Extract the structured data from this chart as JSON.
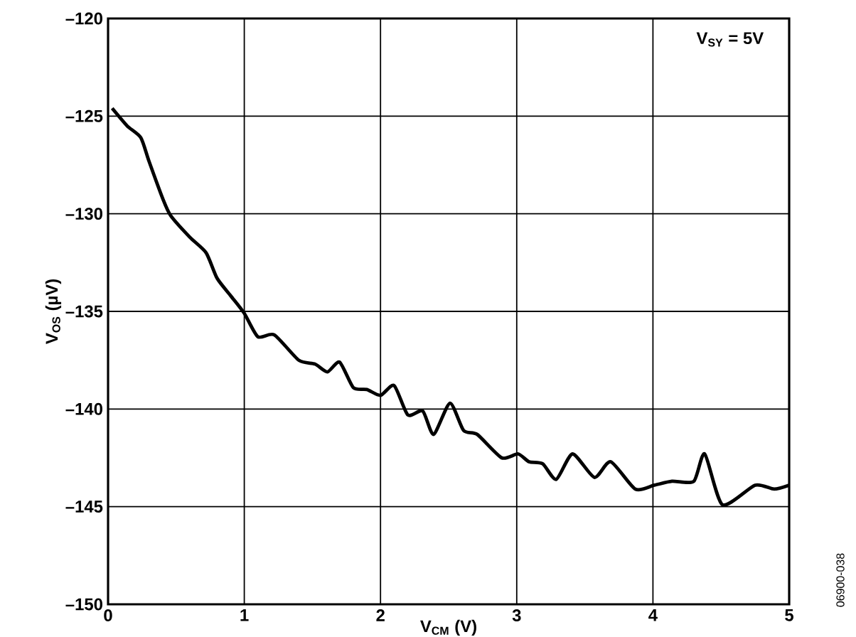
{
  "chart_data": {
    "type": "line",
    "xlabel": "V$_{CM}$ (V)",
    "ylabel": "V$_{OS}$ (µV)",
    "annotations": [
      "V$_{SY}$ = 5V",
      "06900-038"
    ],
    "xlim": [
      0,
      5
    ],
    "ylim": [
      -150,
      -120
    ],
    "xticks": [
      0,
      1,
      2,
      3,
      4,
      5
    ],
    "yticks": [
      {
        "value": -150,
        "label": "–150"
      },
      {
        "value": -145,
        "label": "–145"
      },
      {
        "value": -140,
        "label": "–140"
      },
      {
        "value": -135,
        "label": "–135"
      },
      {
        "value": -130,
        "label": "–130"
      },
      {
        "value": -125,
        "label": "–125"
      },
      {
        "value": -120,
        "label": "–120"
      }
    ],
    "grid": true,
    "marker": "none",
    "line_style": "solid",
    "series": [
      {
        "color": "#000000",
        "x": [
          0.03,
          0.14,
          0.24,
          0.3,
          0.4,
          0.46,
          0.6,
          0.72,
          0.8,
          0.9,
          1.0,
          1.1,
          1.22,
          1.4,
          1.52,
          1.61,
          1.7,
          1.8,
          1.9,
          2.0,
          2.1,
          2.2,
          2.31,
          2.39,
          2.51,
          2.61,
          2.71,
          2.89,
          3.01,
          3.09,
          3.19,
          3.29,
          3.41,
          3.57,
          3.69,
          3.87,
          4.01,
          4.14,
          4.3,
          4.38,
          4.51,
          4.75,
          4.89,
          5.0
        ],
        "values": [
          -124.6,
          -125.5,
          -126.1,
          -127.3,
          -129.2,
          -130.1,
          -131.2,
          -132.0,
          -133.3,
          -134.2,
          -135.1,
          -136.3,
          -136.2,
          -137.5,
          -137.7,
          -138.1,
          -137.6,
          -138.9,
          -139.0,
          -139.3,
          -138.8,
          -140.3,
          -140.1,
          -141.3,
          -139.7,
          -141.1,
          -141.3,
          -142.5,
          -142.3,
          -142.7,
          -142.8,
          -143.6,
          -142.3,
          -143.5,
          -142.7,
          -144.1,
          -143.9,
          -143.7,
          -143.7,
          -142.3,
          -144.9,
          -143.9,
          -144.1,
          -143.9
        ]
      }
    ]
  }
}
